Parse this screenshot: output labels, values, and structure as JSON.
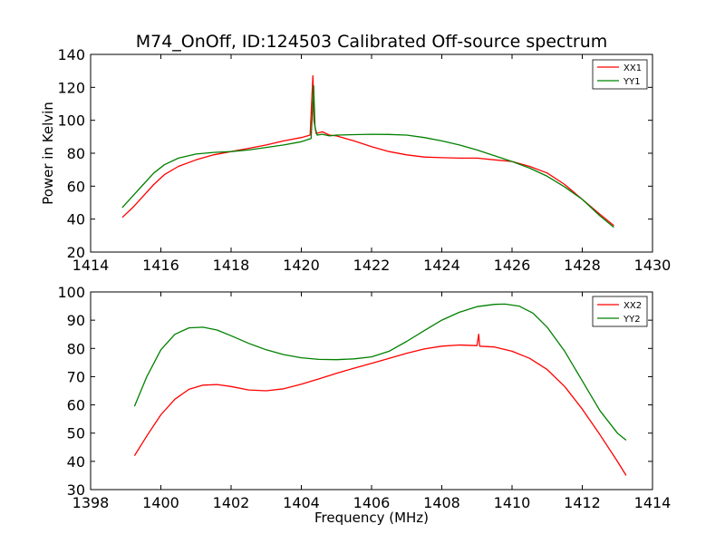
{
  "figure": {
    "title": "M74_OnOff, ID:124503 Calibrated Off-source spectrum"
  },
  "chart_data": [
    {
      "type": "line",
      "ylabel": "Power in Kelvin",
      "xlabel": "",
      "xlim": [
        1414,
        1430
      ],
      "ylim": [
        20,
        140
      ],
      "xticks": [
        "1414",
        "1416",
        "1418",
        "1420",
        "1422",
        "1424",
        "1426",
        "1428",
        "1430"
      ],
      "yticks": [
        "20",
        "40",
        "60",
        "80",
        "100",
        "120",
        "140"
      ],
      "grid": false,
      "legend_position": "top-right",
      "series": [
        {
          "name": "XX1",
          "color": "#ff0000",
          "x": [
            1414.9,
            1415.2,
            1415.5,
            1415.8,
            1416.1,
            1416.5,
            1417.0,
            1417.5,
            1418.0,
            1418.5,
            1419.0,
            1419.5,
            1420.0,
            1420.25,
            1420.33,
            1420.36,
            1420.42,
            1420.6,
            1420.8,
            1421.0,
            1421.5,
            1422.0,
            1422.5,
            1423.0,
            1423.5,
            1424.0,
            1424.5,
            1425.0,
            1425.5,
            1426.0,
            1426.5,
            1427.0,
            1427.5,
            1428.0,
            1428.5,
            1428.9
          ],
          "y": [
            41,
            47,
            54,
            61,
            67,
            72,
            76,
            79,
            81,
            83,
            85,
            87.5,
            89.5,
            91,
            127,
            100,
            92,
            93,
            91,
            90.5,
            87.5,
            84,
            81,
            79,
            77.7,
            77.3,
            77,
            77,
            76,
            75,
            72,
            68,
            61,
            52,
            43,
            36
          ]
        },
        {
          "name": "YY1",
          "color": "#008000",
          "x": [
            1414.9,
            1415.2,
            1415.5,
            1415.8,
            1416.1,
            1416.5,
            1417.0,
            1417.5,
            1418.0,
            1418.5,
            1419.0,
            1419.5,
            1420.0,
            1420.28,
            1420.35,
            1420.39,
            1420.45,
            1420.6,
            1420.8,
            1421.0,
            1421.5,
            1422.0,
            1422.5,
            1423.0,
            1423.5,
            1424.0,
            1424.5,
            1425.0,
            1425.5,
            1426.0,
            1426.5,
            1427.0,
            1427.5,
            1428.0,
            1428.5,
            1428.9
          ],
          "y": [
            47,
            54,
            61,
            68,
            73,
            77,
            79.5,
            80.5,
            81,
            82,
            83.5,
            85,
            87,
            89,
            121,
            96,
            91,
            91.5,
            90.5,
            91,
            91.3,
            91.5,
            91.4,
            91,
            89.5,
            87.5,
            85,
            82,
            78.5,
            75,
            71,
            66,
            59.5,
            52,
            42,
            35
          ]
        }
      ]
    },
    {
      "type": "line",
      "ylabel": "",
      "xlabel": "Frequency (MHz)",
      "xlim": [
        1398,
        1414
      ],
      "ylim": [
        30,
        100
      ],
      "xticks": [
        "1398",
        "1400",
        "1402",
        "1404",
        "1406",
        "1408",
        "1410",
        "1412",
        "1414"
      ],
      "yticks": [
        "30",
        "40",
        "50",
        "60",
        "70",
        "80",
        "90",
        "100"
      ],
      "grid": false,
      "legend_position": "top-right",
      "series": [
        {
          "name": "XX2",
          "color": "#ff0000",
          "x": [
            1399.25,
            1399.6,
            1400.0,
            1400.4,
            1400.8,
            1401.2,
            1401.6,
            1402.0,
            1402.5,
            1403.0,
            1403.5,
            1404.0,
            1404.5,
            1405.0,
            1405.5,
            1406.0,
            1406.5,
            1407.0,
            1407.5,
            1408.0,
            1408.5,
            1409.0,
            1409.05,
            1409.08,
            1409.5,
            1410.0,
            1410.5,
            1411.0,
            1411.5,
            1412.0,
            1412.5,
            1413.0,
            1413.25
          ],
          "y": [
            42,
            49,
            56.5,
            62,
            65.5,
            67,
            67.2,
            66.5,
            65.3,
            65,
            65.7,
            67.3,
            69.2,
            71.2,
            73,
            74.7,
            76.5,
            78.3,
            79.8,
            80.8,
            81.2,
            81,
            85,
            80.8,
            80.5,
            79,
            76.5,
            72.5,
            66.5,
            58.5,
            49.5,
            40,
            35
          ]
        },
        {
          "name": "YY2",
          "color": "#008000",
          "x": [
            1399.25,
            1399.6,
            1400.0,
            1400.4,
            1400.8,
            1401.2,
            1401.6,
            1402.0,
            1402.5,
            1403.0,
            1403.5,
            1404.0,
            1404.5,
            1405.0,
            1405.5,
            1406.0,
            1406.5,
            1407.0,
            1407.5,
            1408.0,
            1408.5,
            1409.0,
            1409.5,
            1409.8,
            1410.2,
            1410.6,
            1411.0,
            1411.5,
            1412.0,
            1412.5,
            1413.0,
            1413.25
          ],
          "y": [
            59.5,
            70,
            79.5,
            85,
            87.3,
            87.5,
            86.5,
            84.5,
            81.8,
            79.5,
            77.8,
            76.7,
            76.1,
            76,
            76.3,
            77,
            79,
            82.5,
            86.3,
            90,
            92.8,
            94.8,
            95.6,
            95.7,
            95,
            92.5,
            87.5,
            79,
            68.5,
            58,
            50,
            47.5
          ]
        }
      ]
    }
  ]
}
